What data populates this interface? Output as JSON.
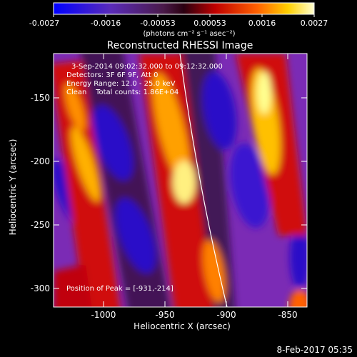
{
  "colorbar": {
    "ticks": [
      "-0.0027",
      "-0.0016",
      "-0.00053",
      "0.00053",
      "0.0016",
      "0.0027"
    ],
    "unit_label": "(photons cm⁻² s⁻¹ asec⁻²)"
  },
  "title": "Reconstructed RHESSI Image",
  "annotations": {
    "time_range": "3-Sep-2014 09:02:32.000 to 09:12:32.000",
    "detectors": "Detectors: 3F 6F 9F, Att 0",
    "energy": "Energy Range: 12.0 - 25.0 keV",
    "clean": "Clean    Total counts: 1.86E+04",
    "peak": "Position of Peak = [-931,-214]"
  },
  "axes": {
    "xlabel": "Heliocentric X (arcsec)",
    "ylabel": "Heliocentric Y (arcsec)",
    "xticks": [
      "-1000",
      "-950",
      "-900",
      "-850"
    ],
    "yticks": [
      "-150",
      "-200",
      "-250",
      "-300"
    ],
    "xrange": [
      -1035,
      -840
    ],
    "yrange": [
      -315,
      -120
    ]
  },
  "footer": {
    "date": "8-Feb-2017 05:35"
  },
  "colors": {
    "low": "#0000ff",
    "mid_low": "#7a2bb0",
    "mid": "#000000",
    "mid_high": "#ff0000",
    "high": "#ffff99"
  }
}
